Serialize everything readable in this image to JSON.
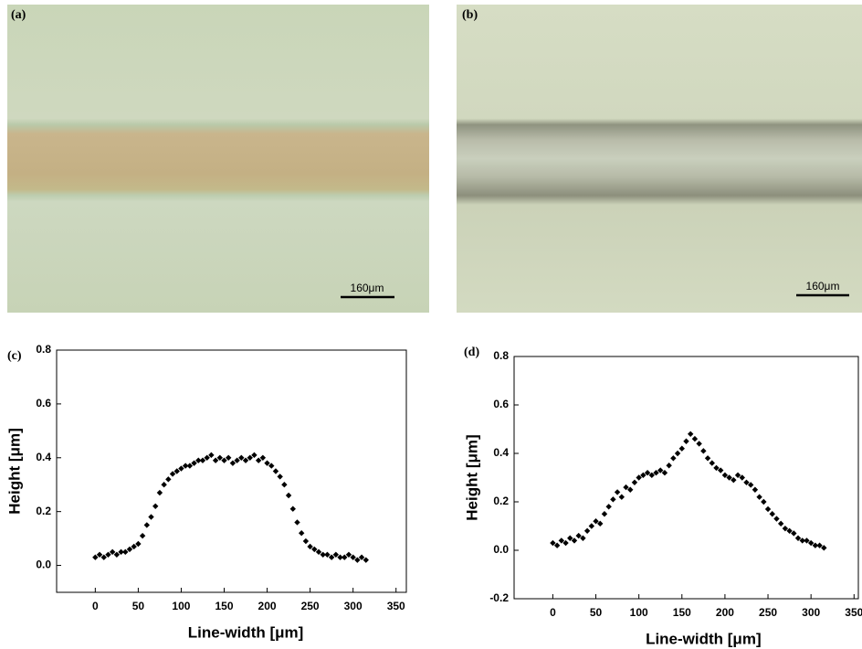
{
  "images": [
    {
      "label": "(a)",
      "scale_bar": "160μm"
    },
    {
      "label": "(b)",
      "scale_bar": "160μm"
    }
  ],
  "chart_data": [
    {
      "type": "scatter",
      "label": "(c)",
      "x_label": "Line-width [μm]",
      "y_label": "Height [μm]",
      "color": "#000000",
      "x": [
        0,
        5,
        10,
        15,
        20,
        25,
        30,
        35,
        40,
        45,
        50,
        55,
        60,
        65,
        70,
        75,
        80,
        85,
        90,
        95,
        100,
        105,
        110,
        115,
        120,
        125,
        130,
        135,
        140,
        145,
        150,
        155,
        160,
        165,
        170,
        175,
        180,
        185,
        190,
        195,
        200,
        205,
        210,
        215,
        220,
        225,
        230,
        235,
        240,
        245,
        250,
        255,
        260,
        265,
        270,
        275,
        280,
        285,
        290,
        295,
        300,
        305,
        310,
        315
      ],
      "values": [
        0.03,
        0.04,
        0.03,
        0.04,
        0.05,
        0.04,
        0.05,
        0.05,
        0.06,
        0.07,
        0.08,
        0.11,
        0.15,
        0.18,
        0.22,
        0.27,
        0.3,
        0.32,
        0.34,
        0.35,
        0.36,
        0.37,
        0.37,
        0.38,
        0.39,
        0.39,
        0.4,
        0.41,
        0.39,
        0.4,
        0.39,
        0.4,
        0.38,
        0.39,
        0.4,
        0.39,
        0.4,
        0.41,
        0.39,
        0.4,
        0.38,
        0.37,
        0.35,
        0.33,
        0.3,
        0.26,
        0.21,
        0.16,
        0.12,
        0.09,
        0.07,
        0.06,
        0.05,
        0.04,
        0.04,
        0.03,
        0.04,
        0.03,
        0.03,
        0.04,
        0.03,
        0.02,
        0.03,
        0.02
      ],
      "xlim": [
        -45,
        362
      ],
      "xticks": [
        0,
        50,
        100,
        150,
        200,
        250,
        300,
        350
      ],
      "ylim": [
        -0.1,
        0.8
      ],
      "yticks": [
        {
          "value": 0,
          "label": "0.0"
        },
        0.2,
        0.4,
        0.6,
        0.8
      ]
    },
    {
      "type": "scatter",
      "label": "(d)",
      "x_label": "Line-width [μm]",
      "y_label": "Height [μm]",
      "color": "#000000",
      "x": [
        0,
        5,
        10,
        15,
        20,
        25,
        30,
        35,
        40,
        45,
        50,
        55,
        60,
        65,
        70,
        75,
        80,
        85,
        90,
        95,
        100,
        105,
        110,
        115,
        120,
        125,
        130,
        135,
        140,
        145,
        150,
        155,
        160,
        165,
        170,
        175,
        180,
        185,
        190,
        195,
        200,
        205,
        210,
        215,
        220,
        225,
        230,
        235,
        240,
        245,
        250,
        255,
        260,
        265,
        270,
        275,
        280,
        285,
        290,
        295,
        300,
        305,
        310,
        315
      ],
      "values": [
        0.03,
        0.02,
        0.04,
        0.03,
        0.05,
        0.04,
        0.06,
        0.05,
        0.08,
        0.1,
        0.12,
        0.11,
        0.15,
        0.18,
        0.21,
        0.24,
        0.22,
        0.26,
        0.25,
        0.28,
        0.3,
        0.31,
        0.32,
        0.31,
        0.32,
        0.33,
        0.32,
        0.35,
        0.38,
        0.4,
        0.42,
        0.45,
        0.48,
        0.46,
        0.44,
        0.41,
        0.38,
        0.36,
        0.34,
        0.33,
        0.31,
        0.3,
        0.29,
        0.31,
        0.3,
        0.28,
        0.27,
        0.25,
        0.22,
        0.2,
        0.17,
        0.15,
        0.13,
        0.11,
        0.09,
        0.08,
        0.07,
        0.05,
        0.04,
        0.04,
        0.03,
        0.02,
        0.02,
        0.01
      ],
      "xlim": [
        -45,
        355
      ],
      "xticks": [
        0,
        50,
        100,
        150,
        200,
        250,
        300,
        350
      ],
      "ylim": [
        -0.2,
        0.8
      ],
      "yticks": [
        {
          "value": -0.2,
          "label": "-0.2"
        },
        {
          "value": 0,
          "label": "0.0"
        },
        0.2,
        0.4,
        0.6,
        0.8
      ]
    }
  ]
}
